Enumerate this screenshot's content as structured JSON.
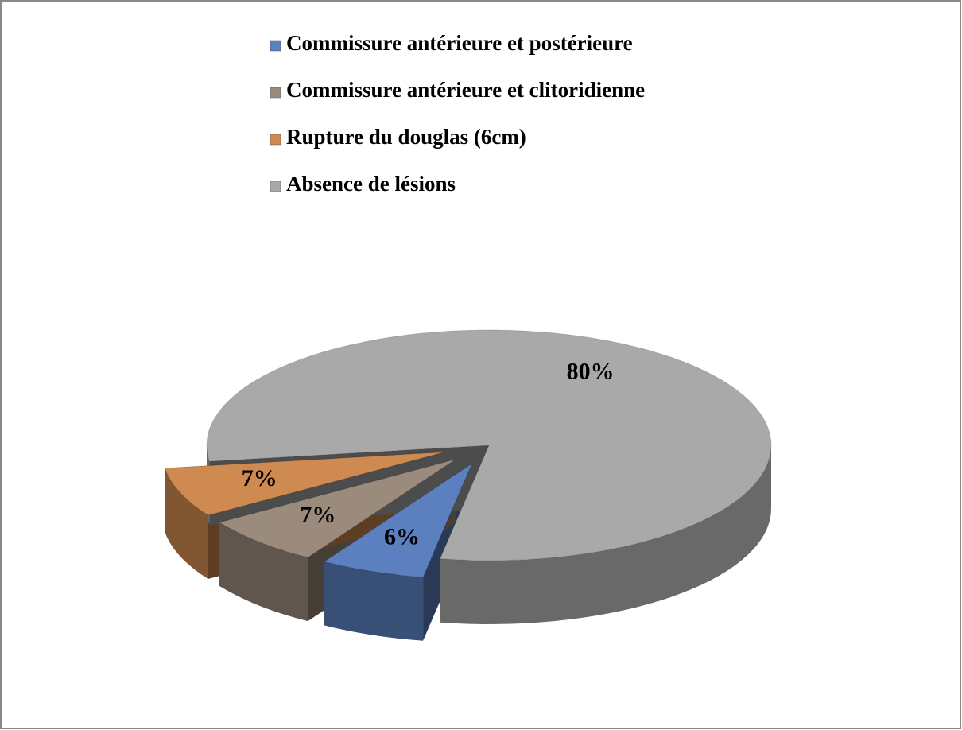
{
  "chart_data": {
    "type": "pie",
    "categories": [
      "Commissure  antérieure et postérieure",
      "Commissure  antérieure et clitoridienne",
      "Rupture  du douglas (6cm)",
      "Absence  de lésions"
    ],
    "values": [
      6,
      7,
      7,
      80
    ],
    "value_labels": [
      "6%",
      "7%",
      "7%",
      "80%"
    ],
    "colors": [
      "#5b7fbf",
      "#9b8b7c",
      "#cf8a52",
      "#a9a9a9"
    ]
  }
}
